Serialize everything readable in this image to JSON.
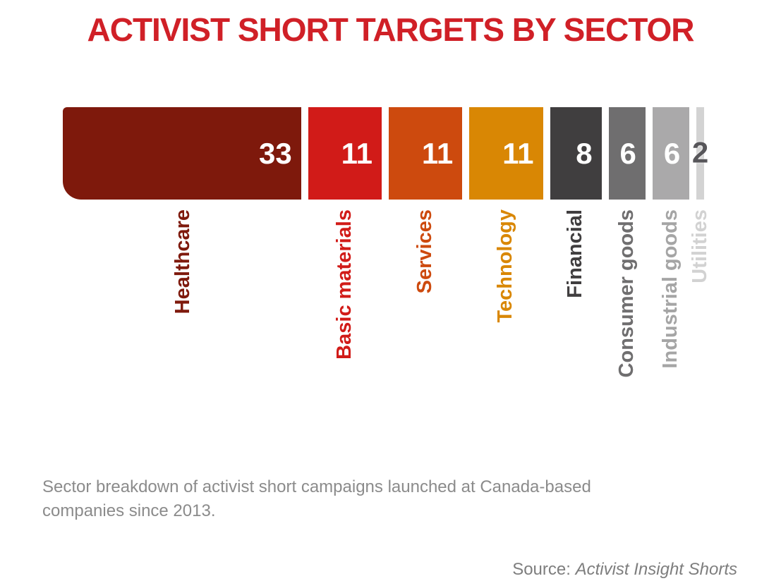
{
  "title": {
    "text": "ACTIVIST SHORT TARGETS BY SECTOR",
    "color": "#d02027"
  },
  "chart_data": {
    "type": "bar",
    "variant": "proportional-width-segments",
    "title": "ACTIVIST SHORT TARGETS BY SECTOR",
    "categories": [
      "Healthcare",
      "Basic materials",
      "Services",
      "Technology",
      "Financial",
      "Consumer goods",
      "Industrial goods",
      "Utilities"
    ],
    "values": [
      33,
      11,
      11,
      11,
      8,
      6,
      6,
      2
    ],
    "total": 88,
    "bar_colors": [
      "#7e190c",
      "#d11b18",
      "#cd4a0e",
      "#d98704",
      "#403e3f",
      "#6f6e6f",
      "#aaa9aa",
      "#d3d3d3"
    ],
    "label_colors": [
      "#7e190c",
      "#d11b18",
      "#cd4a0e",
      "#d98704",
      "#403e3f",
      "#6f6e6f",
      "#a5a5a5",
      "#d2d2d2"
    ],
    "value_labels": [
      "33",
      "11",
      "11",
      "11",
      "8",
      "6",
      "6",
      "2"
    ],
    "value_label_colors": [
      "#ffffff",
      "#ffffff",
      "#ffffff",
      "#ffffff",
      "#ffffff",
      "#ffffff",
      "#ffffff",
      "#57565a"
    ],
    "value_label_position": [
      "inside-right",
      "inside-right",
      "inside-right",
      "inside-right",
      "inside-right",
      "inside-right",
      "inside-right",
      "overlay-center"
    ],
    "xlabel": "",
    "ylabel": "",
    "grid": false,
    "legend": false,
    "axes": false,
    "category_label_rotation": -90
  },
  "caption": {
    "text": "Sector breakdown of activist short campaigns launched at Canada-based companies since 2013.",
    "color": "#8b8b8b"
  },
  "source": {
    "prefix": "Source: ",
    "name": "Activist Insight Shorts",
    "color": "#7e7e7e"
  }
}
